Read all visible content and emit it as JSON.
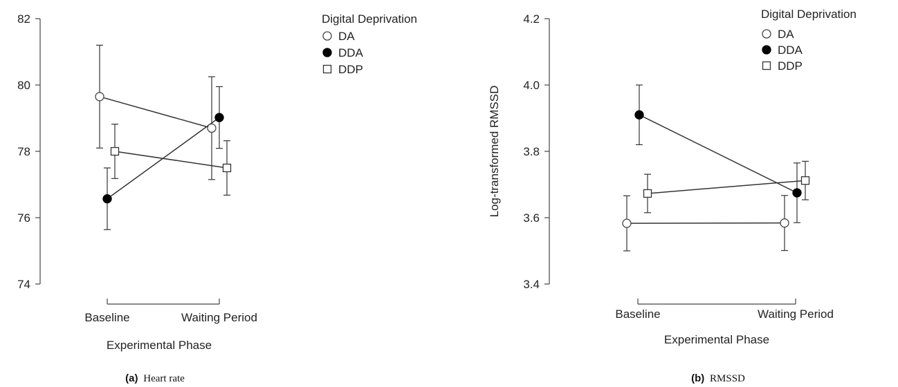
{
  "chart_data": [
    {
      "type": "line",
      "caption_label": "(a)",
      "caption_title": "Heart rate",
      "xlabel": "Experimental Phase",
      "ylabel": "",
      "categories": [
        "Baseline",
        "Waiting Period"
      ],
      "ylim": [
        74,
        82
      ],
      "yticks": [
        "74",
        "76",
        "78",
        "80",
        "82"
      ],
      "legend": {
        "title": "Digital Deprivation",
        "placement": "top-right"
      },
      "series": [
        {
          "name": "DA",
          "marker": "circle-open",
          "values": [
            79.65,
            78.7
          ],
          "errors": [
            1.55,
            1.55
          ]
        },
        {
          "name": "DDA",
          "marker": "circle-filled",
          "values": [
            76.57,
            79.02
          ],
          "errors": [
            0.93,
            0.93
          ]
        },
        {
          "name": "DDP",
          "marker": "square-open",
          "values": [
            78.0,
            77.5
          ],
          "errors": [
            0.82,
            0.82
          ]
        }
      ]
    },
    {
      "type": "line",
      "caption_label": "(b)",
      "caption_title": "RMSSD",
      "xlabel": "Experimental Phase",
      "ylabel": "Log-transformed RMSSD",
      "categories": [
        "Baseline",
        "Waiting Period"
      ],
      "ylim": [
        3.4,
        4.2
      ],
      "yticks": [
        "3.4",
        "3.6",
        "3.8",
        "4.0",
        "4.2"
      ],
      "legend": {
        "title": "Digital Deprivation",
        "placement": "top-right"
      },
      "series": [
        {
          "name": "DA",
          "marker": "circle-open",
          "values": [
            3.583,
            3.584
          ],
          "errors": [
            0.083,
            0.083
          ]
        },
        {
          "name": "DDA",
          "marker": "circle-filled",
          "values": [
            3.91,
            3.675
          ],
          "errors": [
            0.09,
            0.09
          ]
        },
        {
          "name": "DDP",
          "marker": "square-open",
          "values": [
            3.673,
            3.712
          ],
          "errors": [
            0.058,
            0.058
          ]
        }
      ]
    }
  ]
}
